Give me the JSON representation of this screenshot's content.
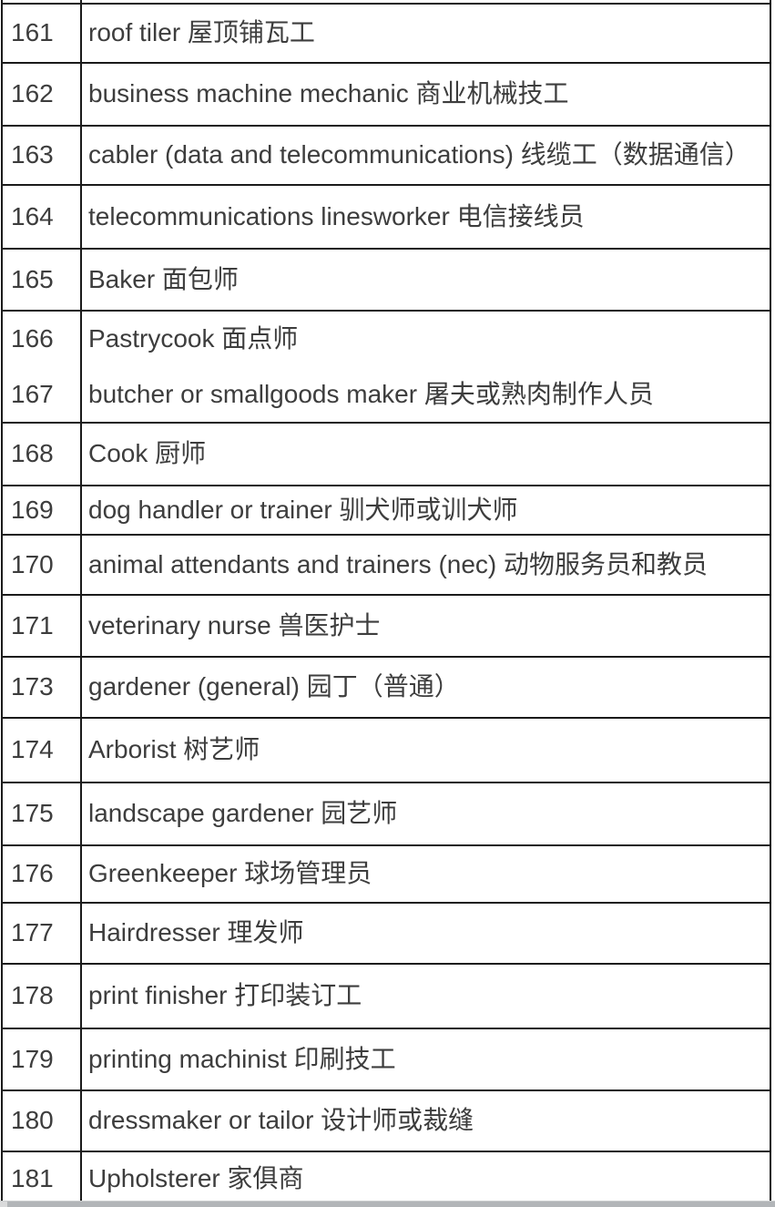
{
  "theme": {
    "text_color": "#3d3d3d",
    "border_color": "#1a1a1a",
    "background_color": "#ffffff",
    "bottom_bar_color": "#b2b5b8"
  },
  "table": {
    "description": "numbered occupation list, English with Chinese translation",
    "rows": [
      {
        "entries": [
          {
            "no": "161",
            "text": "roof tiler 屋顶铺瓦工"
          }
        ]
      },
      {
        "entries": [
          {
            "no": "162",
            "text": "business machine mechanic 商业机械技工"
          }
        ]
      },
      {
        "entries": [
          {
            "no": "163",
            "text": "cabler (data and telecommunications) 线缆工（数据通信）"
          }
        ]
      },
      {
        "entries": [
          {
            "no": "164",
            "text": "telecommunications linesworker 电信接线员"
          }
        ]
      },
      {
        "entries": [
          {
            "no": "165",
            "text": "Baker 面包师"
          }
        ]
      },
      {
        "entries": [
          {
            "no": "166",
            "text": "Pastrycook 面点师"
          },
          {
            "no": "167",
            "text": "butcher or smallgoods maker 屠夫或熟肉制作人员"
          }
        ]
      },
      {
        "entries": [
          {
            "no": "168",
            "text": "Cook 厨师"
          }
        ]
      },
      {
        "entries": [
          {
            "no": "169",
            "text": "dog handler or trainer 驯犬师或训犬师"
          }
        ]
      },
      {
        "entries": [
          {
            "no": "170",
            "text": "animal attendants and trainers (nec) 动物服务员和教员"
          }
        ]
      },
      {
        "entries": [
          {
            "no": "171",
            "text": "veterinary nurse 兽医护士"
          }
        ]
      },
      {
        "entries": [
          {
            "no": "173",
            "text": "gardener (general) 园丁（普通）"
          }
        ]
      },
      {
        "entries": [
          {
            "no": "174",
            "text": "Arborist 树艺师"
          }
        ]
      },
      {
        "entries": [
          {
            "no": "175",
            "text": "landscape gardener 园艺师"
          }
        ]
      },
      {
        "entries": [
          {
            "no": "176",
            "text": "Greenkeeper 球场管理员"
          }
        ]
      },
      {
        "entries": [
          {
            "no": "177",
            "text": "Hairdresser 理发师"
          }
        ]
      },
      {
        "entries": [
          {
            "no": "178",
            "text": "print finisher 打印装订工"
          }
        ]
      },
      {
        "entries": [
          {
            "no": "179",
            "text": "printing machinist 印刷技工"
          }
        ]
      },
      {
        "entries": [
          {
            "no": "180",
            "text": "dressmaker or tailor 设计师或裁缝"
          }
        ]
      },
      {
        "entries": [
          {
            "no": "181",
            "text": "Upholsterer 家俱商"
          }
        ]
      }
    ]
  }
}
